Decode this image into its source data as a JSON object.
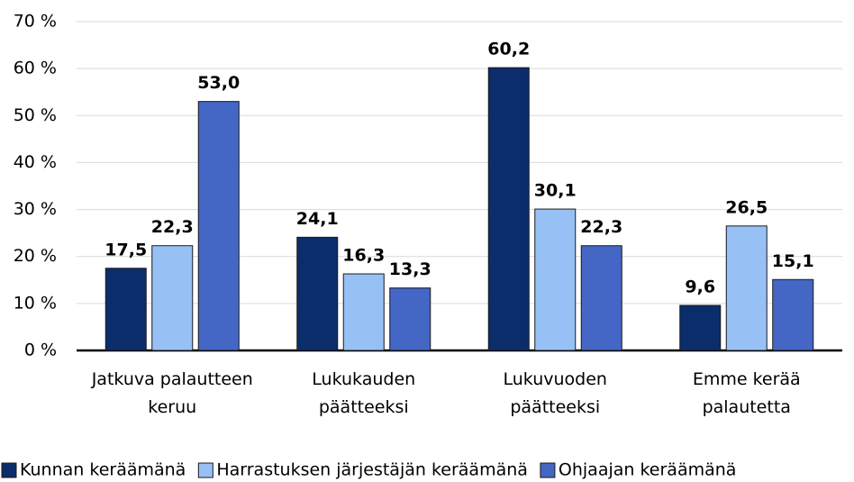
{
  "chart_data": {
    "type": "bar",
    "categories": [
      "Jatkuva palautteen keruu",
      "Lukukauden päätteeksi",
      "Lukuvuoden päätteeksi",
      "Emme kerää palautetta"
    ],
    "series": [
      {
        "name": "Kunnan keräämänä",
        "color": "#0b2d6b",
        "values": [
          17.5,
          24.1,
          60.2,
          9.6
        ],
        "value_labels": [
          "17,5",
          "24,1",
          "60,2",
          "9,6"
        ]
      },
      {
        "name": "Harrastuksen järjestäjän keräämänä",
        "color": "#97c1f5",
        "values": [
          22.3,
          16.3,
          30.1,
          26.5
        ],
        "value_labels": [
          "22,3",
          "16,3",
          "30,1",
          "26,5"
        ]
      },
      {
        "name": "Ohjaajan keräämänä",
        "color": "#4466c4",
        "values": [
          53.0,
          13.3,
          22.3,
          15.1
        ],
        "value_labels": [
          "53,0",
          "13,3",
          "22,3",
          "15,1"
        ]
      }
    ],
    "ylim": [
      0,
      70
    ],
    "yticks": [
      {
        "value": 0,
        "label": "0 %"
      },
      {
        "value": 10,
        "label": "10 %"
      },
      {
        "value": 20,
        "label": "20 %"
      },
      {
        "value": 30,
        "label": "30 %"
      },
      {
        "value": 40,
        "label": "40 %"
      },
      {
        "value": 50,
        "label": "50 %"
      },
      {
        "value": 60,
        "label": "60 %"
      },
      {
        "value": 70,
        "label": "70 %"
      }
    ],
    "grid": true,
    "legend": "bottom"
  }
}
